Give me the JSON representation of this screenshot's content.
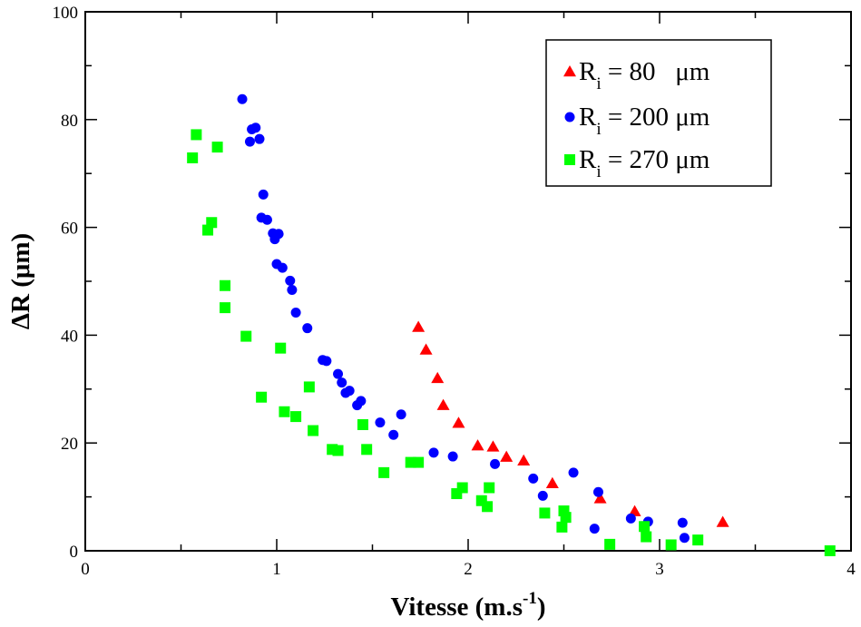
{
  "chart_data": {
    "type": "scatter",
    "xlabel": "Vitesse (m.s",
    "xlabel_sup": "-1",
    "xlabel_end": ")",
    "ylabel": "ΔR (μm)",
    "xlim": [
      0,
      4
    ],
    "ylim": [
      0,
      100
    ],
    "x_ticks": [
      0,
      1,
      2,
      3,
      4
    ],
    "y_ticks": [
      0,
      20,
      40,
      60,
      80,
      100
    ],
    "x_tick_labels": [
      "0",
      "1",
      "2",
      "3",
      "4"
    ],
    "y_tick_labels": [
      "0",
      "20",
      "40",
      "60",
      "80",
      "100"
    ],
    "grid": false,
    "legend_position": "top-right",
    "series": [
      {
        "name": "R",
        "subscript": "i",
        "value_text": " = 80   μm",
        "marker": "triangle",
        "color": "#ff0000",
        "points": [
          [
            1.74,
            41.5
          ],
          [
            1.78,
            37.3
          ],
          [
            1.84,
            32.0
          ],
          [
            1.87,
            27.0
          ],
          [
            1.95,
            23.7
          ],
          [
            2.05,
            19.5
          ],
          [
            2.13,
            19.3
          ],
          [
            2.2,
            17.4
          ],
          [
            2.29,
            16.7
          ],
          [
            2.44,
            12.5
          ],
          [
            2.69,
            9.7
          ],
          [
            2.87,
            7.3
          ],
          [
            3.33,
            5.3
          ]
        ]
      },
      {
        "name": "R",
        "subscript": "i",
        "value_text": " = 200 μm",
        "marker": "circle",
        "color": "#0000ff",
        "points": [
          [
            0.82,
            83.8
          ],
          [
            0.86,
            75.9
          ],
          [
            0.87,
            78.2
          ],
          [
            0.89,
            78.5
          ],
          [
            0.91,
            76.4
          ],
          [
            0.92,
            61.8
          ],
          [
            0.93,
            66.1
          ],
          [
            0.95,
            61.4
          ],
          [
            0.98,
            58.9
          ],
          [
            0.99,
            57.8
          ],
          [
            1.0,
            53.2
          ],
          [
            1.01,
            58.8
          ],
          [
            1.03,
            52.5
          ],
          [
            1.07,
            50.1
          ],
          [
            1.08,
            48.4
          ],
          [
            1.1,
            44.2
          ],
          [
            1.16,
            41.3
          ],
          [
            1.24,
            35.4
          ],
          [
            1.26,
            35.2
          ],
          [
            1.32,
            32.8
          ],
          [
            1.34,
            31.2
          ],
          [
            1.36,
            29.3
          ],
          [
            1.38,
            29.7
          ],
          [
            1.42,
            27.0
          ],
          [
            1.44,
            27.8
          ],
          [
            1.54,
            23.8
          ],
          [
            1.61,
            21.5
          ],
          [
            1.65,
            25.3
          ],
          [
            1.82,
            18.2
          ],
          [
            1.92,
            17.5
          ],
          [
            2.14,
            16.1
          ],
          [
            2.34,
            13.4
          ],
          [
            2.39,
            10.2
          ],
          [
            2.55,
            14.5
          ],
          [
            2.66,
            4.1
          ],
          [
            2.68,
            10.9
          ],
          [
            2.85,
            6.0
          ],
          [
            2.94,
            5.4
          ],
          [
            3.12,
            5.2
          ],
          [
            3.13,
            2.4
          ]
        ]
      },
      {
        "name": "R",
        "subscript": "i",
        "value_text": " = 270 μm",
        "marker": "square",
        "color": "#00ff00",
        "points": [
          [
            0.56,
            72.9
          ],
          [
            0.58,
            77.2
          ],
          [
            0.64,
            59.5
          ],
          [
            0.66,
            60.9
          ],
          [
            0.69,
            74.9
          ],
          [
            0.73,
            45.1
          ],
          [
            0.73,
            49.2
          ],
          [
            0.84,
            39.8
          ],
          [
            0.92,
            28.5
          ],
          [
            1.02,
            37.6
          ],
          [
            1.04,
            25.8
          ],
          [
            1.1,
            24.9
          ],
          [
            1.17,
            30.4
          ],
          [
            1.19,
            22.3
          ],
          [
            1.29,
            18.8
          ],
          [
            1.32,
            18.6
          ],
          [
            1.45,
            23.4
          ],
          [
            1.47,
            18.8
          ],
          [
            1.56,
            14.5
          ],
          [
            1.7,
            16.4
          ],
          [
            1.74,
            16.4
          ],
          [
            1.94,
            10.6
          ],
          [
            1.97,
            11.7
          ],
          [
            2.07,
            9.3
          ],
          [
            2.1,
            8.2
          ],
          [
            2.11,
            11.7
          ],
          [
            2.4,
            7.0
          ],
          [
            2.49,
            4.4
          ],
          [
            2.5,
            7.4
          ],
          [
            2.51,
            6.2
          ],
          [
            2.74,
            1.2
          ],
          [
            2.92,
            4.5
          ],
          [
            2.93,
            2.6
          ],
          [
            3.06,
            1.1
          ],
          [
            3.2,
            2.0
          ],
          [
            3.89,
            0.0
          ]
        ]
      }
    ]
  }
}
